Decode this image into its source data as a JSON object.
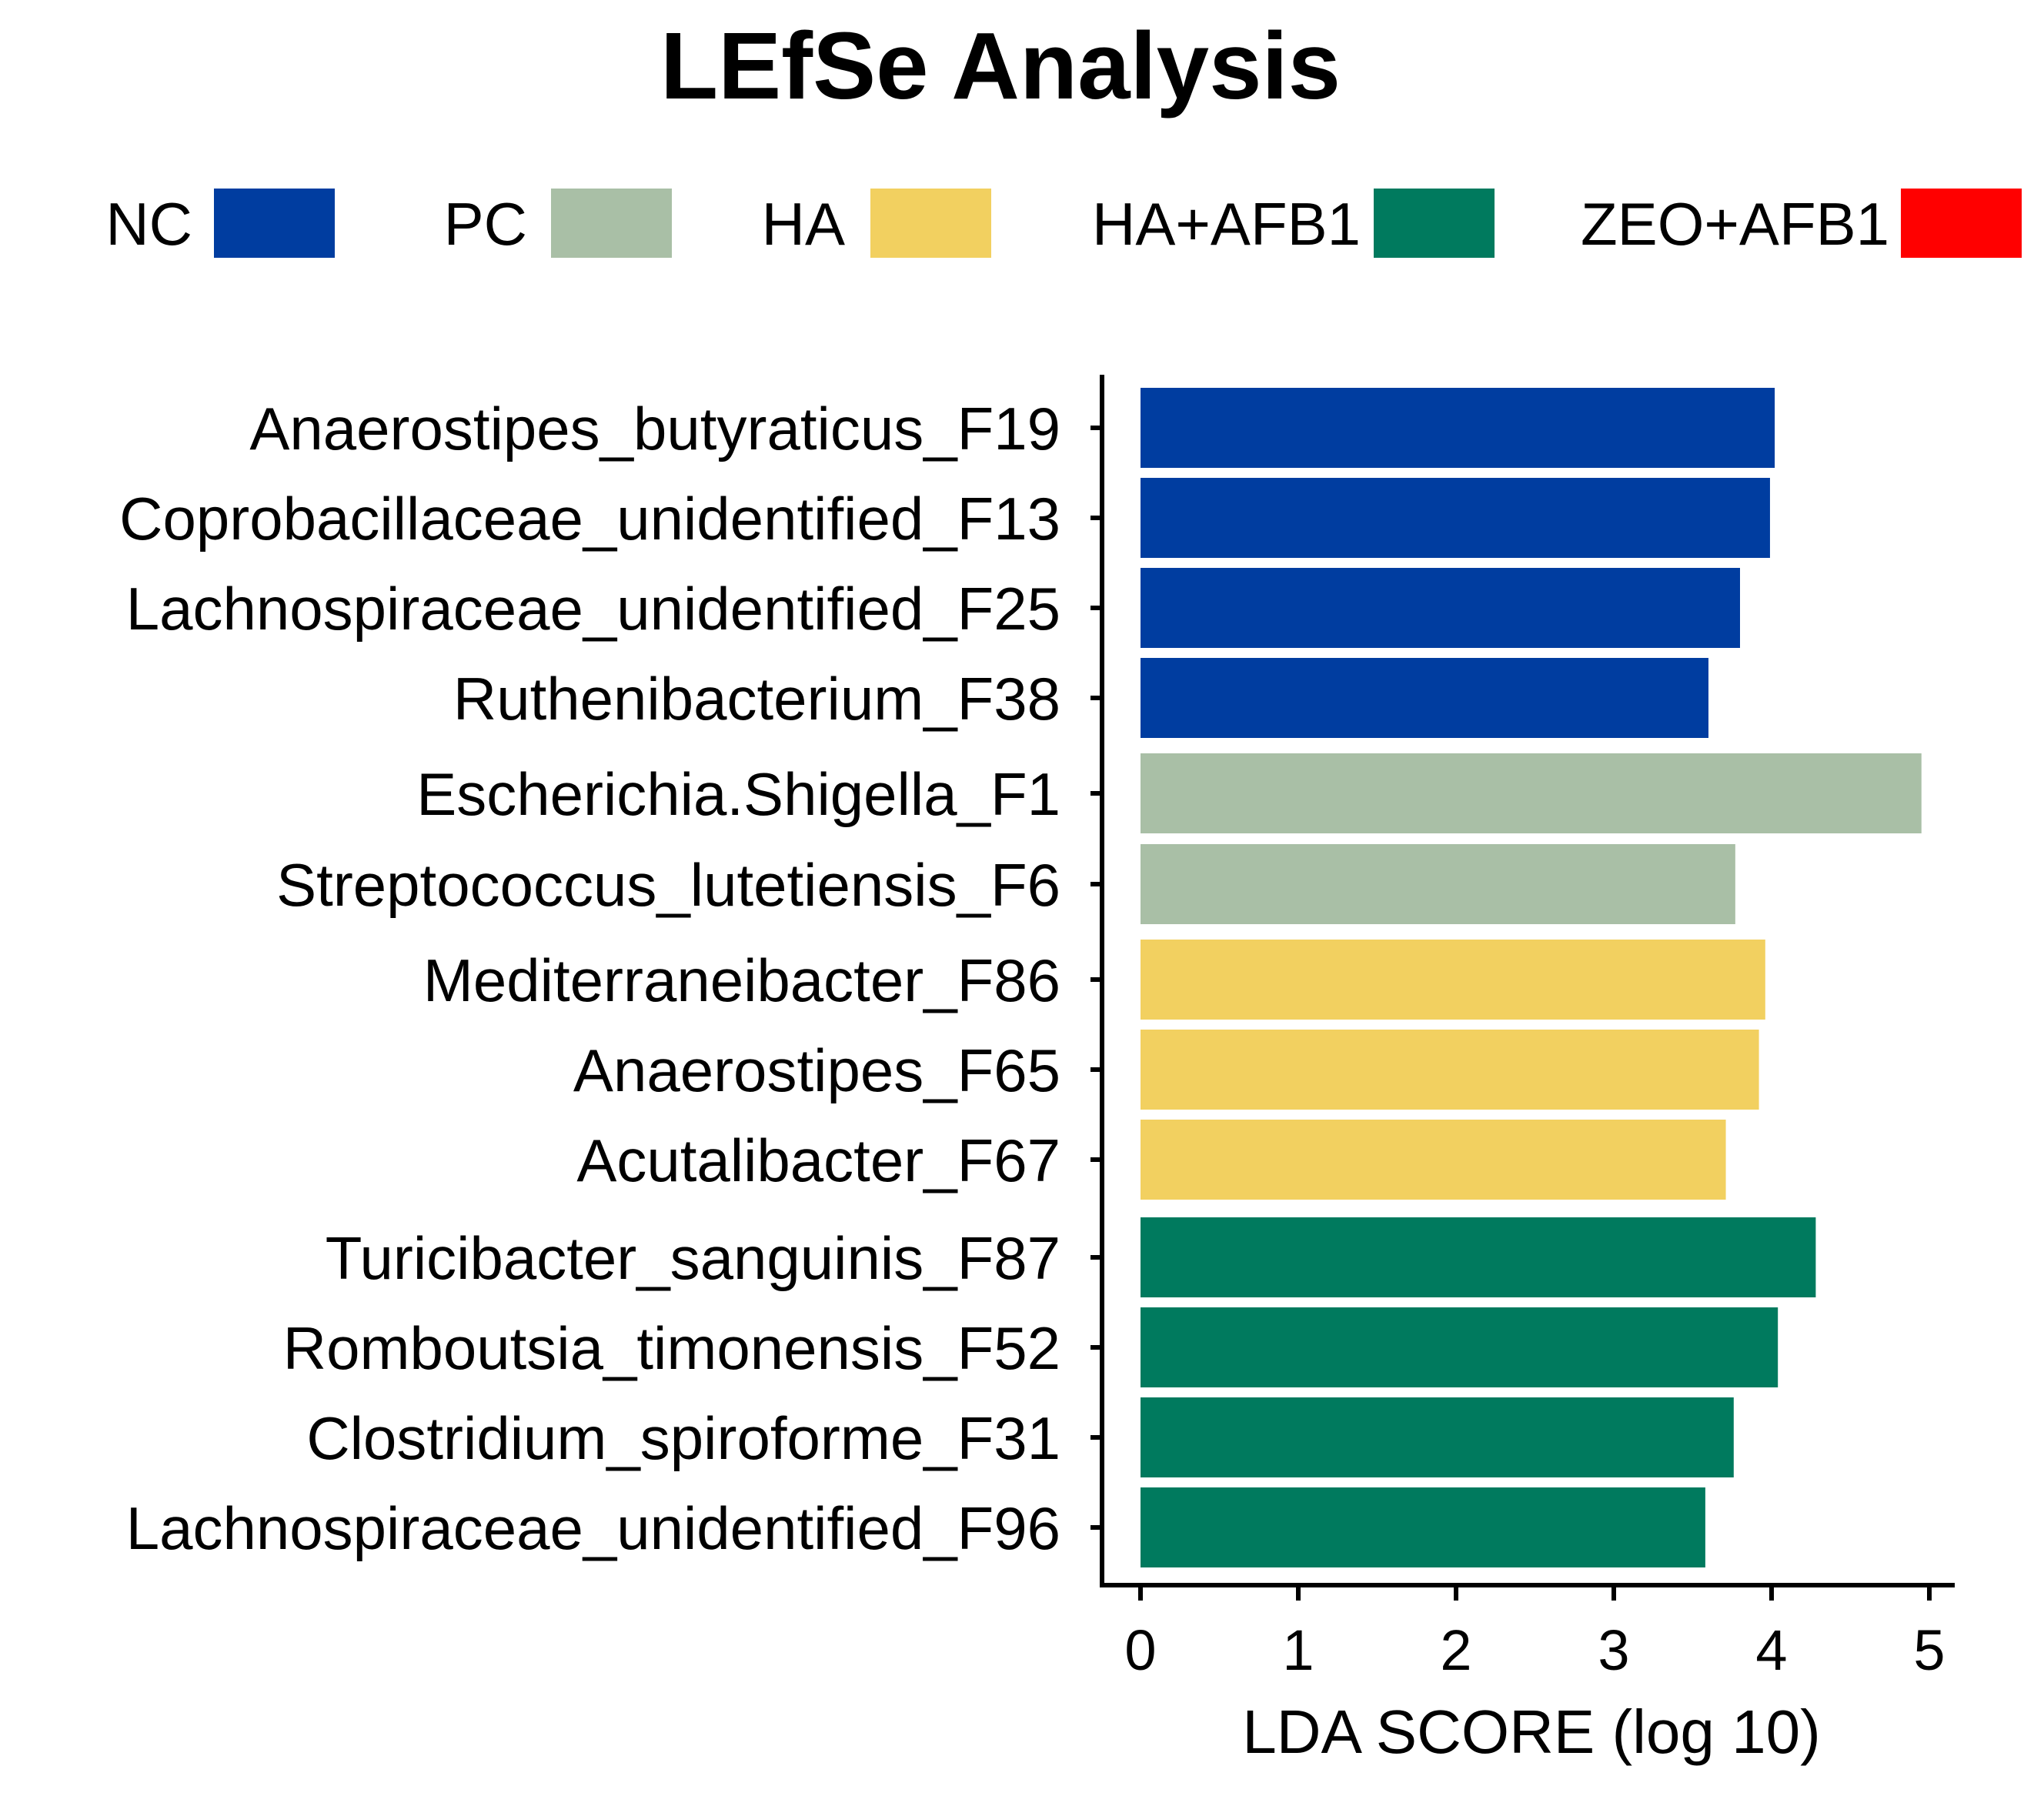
{
  "chart_data": {
    "type": "bar",
    "orientation": "horizontal",
    "title": "LEfSe Analysis",
    "xlabel": "LDA SCORE (log 10)",
    "ylabel": "",
    "xlim": [
      0,
      5
    ],
    "xticks": [
      0,
      1,
      2,
      3,
      4,
      5
    ],
    "grid": false,
    "legend_position": "top",
    "groups": [
      {
        "name": "NC",
        "color": "#003DA0"
      },
      {
        "name": "PC",
        "color": "#A9BFA6"
      },
      {
        "name": "HA",
        "color": "#F2D060"
      },
      {
        "name": "HA+AFB1",
        "color": "#007A5E"
      },
      {
        "name": "ZEO+AFB1",
        "color": "#FF0000"
      }
    ],
    "bars": [
      {
        "label": "Anaerostipes_butyraticus_F19",
        "group": "NC",
        "value": 4.02
      },
      {
        "label": "Coprobacillaceae_unidentified_F13",
        "group": "NC",
        "value": 3.99
      },
      {
        "label": "Lachnospiraceae_unidentified_F25",
        "group": "NC",
        "value": 3.8
      },
      {
        "label": "Ruthenibacterium_F38",
        "group": "NC",
        "value": 3.6
      },
      {
        "label": "Escherichia.Shigella_F1",
        "group": "PC",
        "value": 4.95
      },
      {
        "label": "Streptococcus_lutetiensis_F6",
        "group": "PC",
        "value": 3.77
      },
      {
        "label": "Mediterraneibacter_F86",
        "group": "HA",
        "value": 3.96
      },
      {
        "label": "Anaerostipes_F65",
        "group": "HA",
        "value": 3.92
      },
      {
        "label": "Acutalibacter_F67",
        "group": "HA",
        "value": 3.71
      },
      {
        "label": "Turicibacter_sanguinis_F87",
        "group": "HA+AFB1",
        "value": 4.28
      },
      {
        "label": "Romboutsia_timonensis_F52",
        "group": "HA+AFB1",
        "value": 4.04
      },
      {
        "label": "Clostridium_spiroforme_F31",
        "group": "HA+AFB1",
        "value": 3.76
      },
      {
        "label": "Lachnospiraceae_unidentified_F96",
        "group": "HA+AFB1",
        "value": 3.58
      }
    ]
  }
}
